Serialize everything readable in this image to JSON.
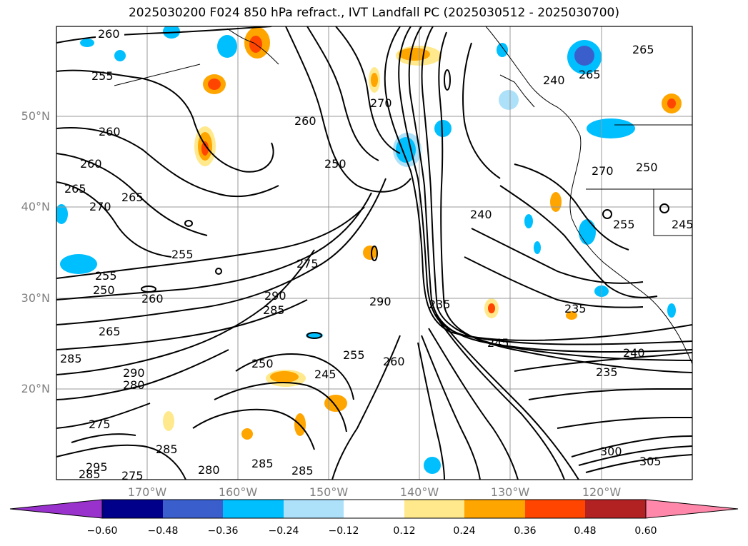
{
  "title": "2025030200 F024 850 hPa refract., IVT Landfall PC (2025030512 - 2025030700)",
  "lat_ticks": [
    "50°N",
    "40°N",
    "30°N",
    "20°N"
  ],
  "lon_ticks": [
    "170°W",
    "160°W",
    "150°W",
    "140°W",
    "130°W",
    "120°W"
  ],
  "colorbar": {
    "labels": [
      "−0.60",
      "−0.48",
      "−0.36",
      "−0.24",
      "−0.12",
      "0.12",
      "0.24",
      "0.36",
      "0.48",
      "0.60"
    ],
    "colors": [
      "#9932cc",
      "#00008b",
      "#3a5fcd",
      "#00bfff",
      "#ade1fa",
      "#ffffff",
      "#ffe98c",
      "#ffa500",
      "#ff4500",
      "#b22222",
      "#ff88aa"
    ]
  },
  "contour_labels": [
    "260",
    "255",
    "260",
    "260",
    "265",
    "270",
    "265",
    "255",
    "255",
    "250",
    "260",
    "285",
    "265",
    "290",
    "280",
    "275",
    "285",
    "295",
    "285",
    "275",
    "280",
    "285",
    "285",
    "250",
    "245",
    "255",
    "260",
    "290",
    "285",
    "275",
    "290",
    "235",
    "245",
    "250",
    "240",
    "235",
    "240",
    "235",
    "240",
    "270",
    "255",
    "245",
    "270",
    "250",
    "260",
    "265",
    "265",
    "300",
    "305"
  ]
}
